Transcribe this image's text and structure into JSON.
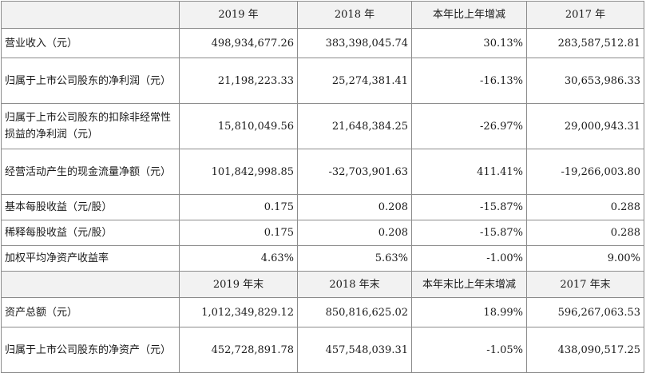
{
  "table1": {
    "headers": [
      "",
      "2019 年",
      "2018 年",
      "本年比上年增减",
      "2017 年"
    ],
    "rows": [
      {
        "label": "营业收入（元）",
        "v2019": "498,934,677.26",
        "v2018": "383,398,045.74",
        "change": "30.13%",
        "v2017": "283,587,512.81"
      },
      {
        "label": "归属于上市公司股东的净利润（元）",
        "v2019": "21,198,223.33",
        "v2018": "25,274,381.41",
        "change": "-16.13%",
        "v2017": "30,653,986.33"
      },
      {
        "label": "归属于上市公司股东的扣除非经常性损益的净利润（元）",
        "v2019": "15,810,049.56",
        "v2018": "21,648,384.25",
        "change": "-26.97%",
        "v2017": "29,000,943.31"
      },
      {
        "label": "经营活动产生的现金流量净额（元）",
        "v2019": "101,842,998.85",
        "v2018": "-32,703,901.63",
        "change": "411.41%",
        "v2017": "-19,266,003.80"
      },
      {
        "label": "基本每股收益（元/股）",
        "v2019": "0.175",
        "v2018": "0.208",
        "change": "-15.87%",
        "v2017": "0.288"
      },
      {
        "label": "稀释每股收益（元/股）",
        "v2019": "0.175",
        "v2018": "0.208",
        "change": "-15.87%",
        "v2017": "0.288"
      },
      {
        "label": "加权平均净资产收益率",
        "v2019": "4.63%",
        "v2018": "5.63%",
        "change": "-1.00%",
        "v2017": "9.00%"
      }
    ]
  },
  "table2": {
    "headers": [
      "",
      "2019 年末",
      "2018 年末",
      "本年末比上年末增减",
      "2017 年末"
    ],
    "rows": [
      {
        "label": "资产总额（元）",
        "v2019": "1,012,349,829.12",
        "v2018": "850,816,625.02",
        "change": "18.99%",
        "v2017": "596,267,063.53"
      },
      {
        "label": "归属于上市公司股东的净资产（元）",
        "v2019": "452,728,891.78",
        "v2018": "457,548,039.31",
        "change": "-1.05%",
        "v2017": "438,090,517.25"
      }
    ]
  }
}
